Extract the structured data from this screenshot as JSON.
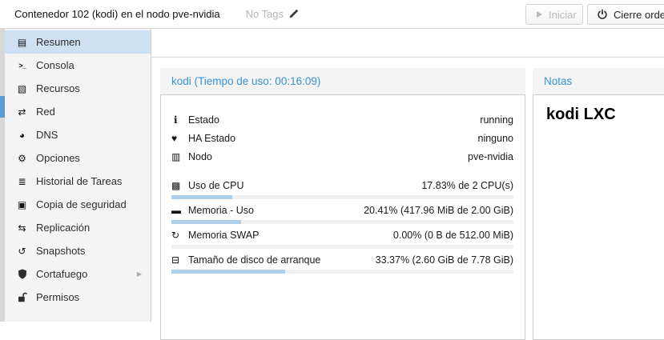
{
  "topbar": {
    "title": "Contenedor 102 (kodi) en el nodo pve-nvidia",
    "tags_label": "No Tags",
    "start_button": "Iniciar",
    "shutdown_button": "Cierre ordenado"
  },
  "sidebar": {
    "items": [
      {
        "label": "Resumen",
        "icon": "book-icon",
        "selected": true
      },
      {
        "label": "Consola",
        "icon": "terminal-icon"
      },
      {
        "label": "Recursos",
        "icon": "cube-icon"
      },
      {
        "label": "Red",
        "icon": "network-icon"
      },
      {
        "label": "DNS",
        "icon": "globe-icon"
      },
      {
        "label": "Opciones",
        "icon": "gear-icon"
      },
      {
        "label": "Historial de Tareas",
        "icon": "task-list-icon"
      },
      {
        "label": "Copia de seguridad",
        "icon": "floppy-icon"
      },
      {
        "label": "Replicación",
        "icon": "replication-icon"
      },
      {
        "label": "Snapshots",
        "icon": "snapshot-icon"
      },
      {
        "label": "Cortafuego",
        "icon": "shield-icon",
        "expandable": true
      },
      {
        "label": "Permisos",
        "icon": "unlock-icon"
      }
    ]
  },
  "summary_panel": {
    "title": "kodi (Tiempo de uso: 00:16:09)",
    "rows": [
      {
        "icon": "info-icon",
        "label": "Estado",
        "value": "running"
      },
      {
        "icon": "heartbeat-icon",
        "label": "HA Estado",
        "value": "ninguno"
      },
      {
        "icon": "building-icon",
        "label": "Nodo",
        "value": "pve-nvidia"
      },
      {
        "icon": "cpu-icon",
        "label": "Uso de CPU",
        "value": "17.83% de 2 CPU(s)",
        "percent": 17.83
      },
      {
        "icon": "memory-icon",
        "label": "Memoria - Uso",
        "value": "20.41% (417.96 MiB de 2.00 GiB)",
        "percent": 20.41
      },
      {
        "icon": "swap-icon",
        "label": "Memoria SWAP",
        "value": "0.00% (0 B de 512.00 MiB)",
        "percent": 0
      },
      {
        "icon": "disk-icon",
        "label": "Tamaño de disco de arranque",
        "value": "33.37% (2.60 GiB de 7.78 GiB)",
        "percent": 33.37
      }
    ]
  },
  "notes_panel": {
    "title": "Notas",
    "content": "kodi LXC"
  },
  "icon_glyphs": {
    "book-icon": "▤",
    "terminal-icon": ">_",
    "cube-icon": "▧",
    "network-icon": "⇄",
    "globe-icon": "◕",
    "gear-icon": "⚙",
    "task-list-icon": "≣",
    "floppy-icon": "▣",
    "replication-icon": "⇆",
    "snapshot-icon": "↺",
    "chevron-right-icon": "▶",
    "info-icon": "i",
    "heartbeat-icon": "♥",
    "building-icon": "▥",
    "cpu-icon": "▩",
    "memory-icon": "▬",
    "swap-icon": "↻",
    "disk-icon": "⊟"
  },
  "colors": {
    "accent_blue": "#3892d4",
    "selected_item_bg": "#cde1f2",
    "progress_fill": "#aecfe9",
    "scrollbar_thumb": "#5b9bd5"
  }
}
